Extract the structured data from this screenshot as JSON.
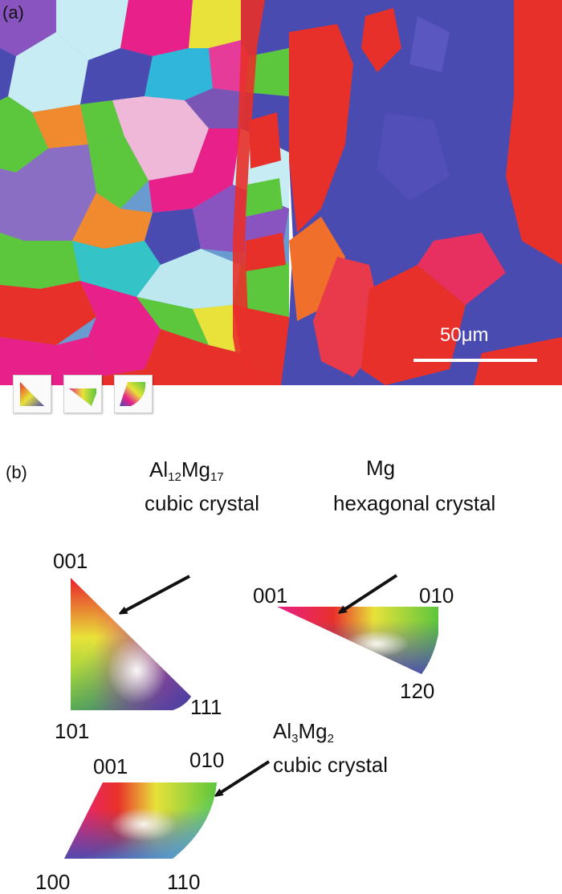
{
  "panel_a": {
    "label": "(a)",
    "scale_bar": {
      "text": "50μm",
      "color": "#ffffff"
    },
    "legend_icons": [
      "ipf-cubic-triangle-icon",
      "ipf-hexagonal-wedge-icon",
      "ipf-cubic-sector-icon"
    ]
  },
  "panel_b": {
    "label": "(b)",
    "phases": [
      {
        "id": "al12mg17",
        "formula": {
          "el1": "Al",
          "sub1": "12",
          "el2": "Mg",
          "sub2": "17"
        },
        "structure": "cubic crystal",
        "poles": {
          "top": "001",
          "bottom_left": "101",
          "bottom_right": "111"
        }
      },
      {
        "id": "mg",
        "formula_plain": "Mg",
        "structure": "hexagonal crystal",
        "poles": {
          "left": "001",
          "right": "010",
          "bottom": "120"
        }
      },
      {
        "id": "al3mg2",
        "formula": {
          "el1": "Al",
          "sub1": "3",
          "el2": "Mg",
          "sub2": "2"
        },
        "structure": "cubic crystal",
        "poles": {
          "top_left": "001",
          "top_right": "010",
          "bottom_left": "100",
          "bottom_right": "110"
        }
      }
    ]
  },
  "colors": {
    "red": "#e8302a",
    "magenta": "#e8208a",
    "blue": "#4a4bb0",
    "purple": "#7a55b5",
    "green": "#5cc63c",
    "cyan": "#5ad8e6",
    "yellow": "#e8e23a",
    "orange": "#f08a2e",
    "light_blue": "#bde8f0",
    "pink": "#efb8d8"
  }
}
